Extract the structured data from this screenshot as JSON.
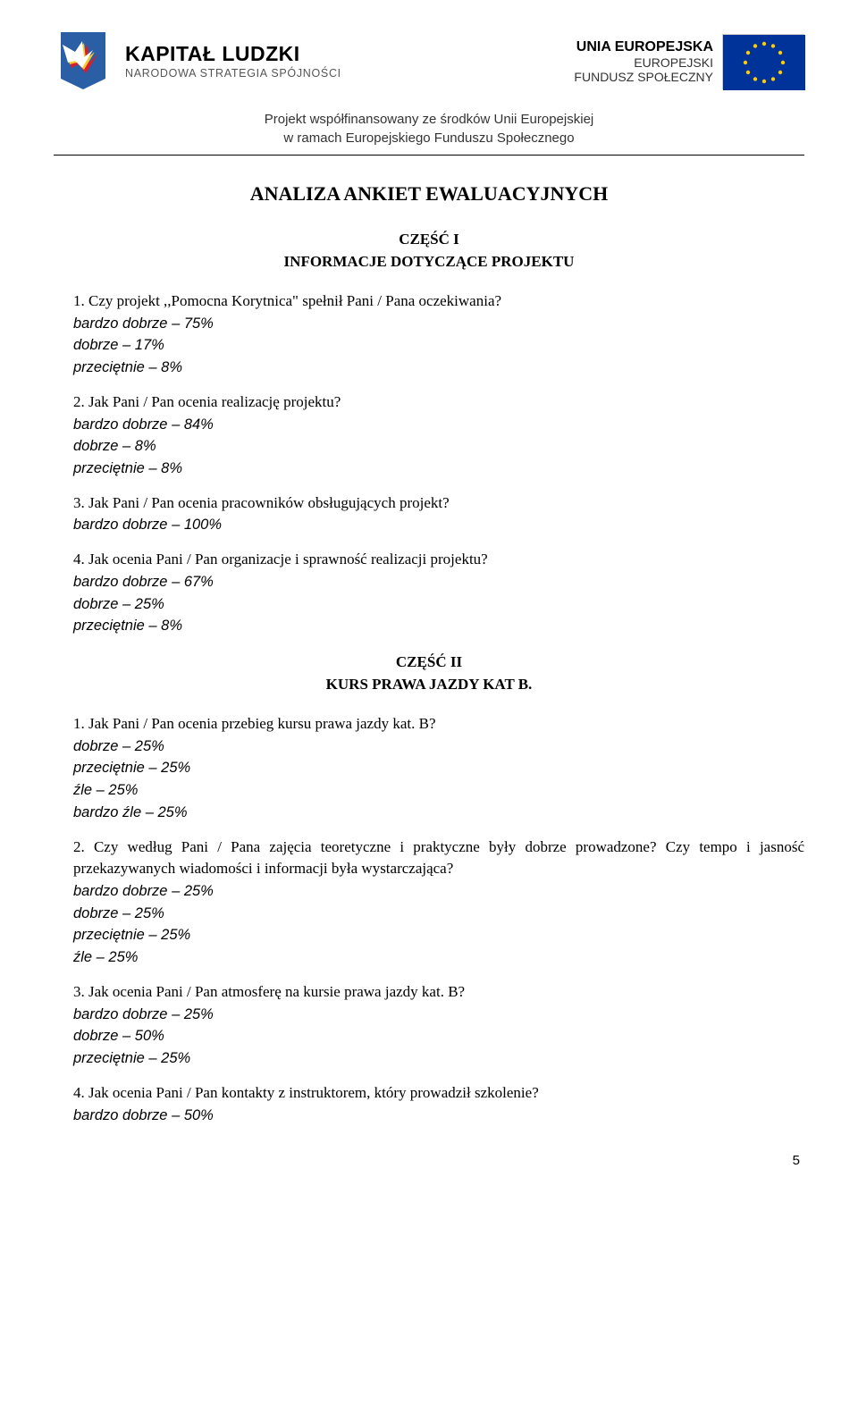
{
  "header": {
    "left_logo": {
      "title": "KAPITAŁ LUDZKI",
      "subtitle": "NARODOWA STRATEGIA SPÓJNOŚCI"
    },
    "right_logo": {
      "line1": "UNIA EUROPEJSKA",
      "line2": "EUROPEJSKI",
      "line3": "FUNDUSZ SPOŁECZNY"
    },
    "subheader_line1": "Projekt współfinansowany ze środków Unii Europejskiej",
    "subheader_line2": "w ramach Europejskiego Funduszu Społecznego"
  },
  "main_title": "ANALIZA ANKIET EWALUACYJNYCH",
  "section1": {
    "title": "CZĘŚĆ I",
    "subtitle": "INFORMACJE DOTYCZĄCE PROJEKTU",
    "questions": [
      {
        "num": "1.",
        "text": "Czy projekt ,,Pomocna Korytnica\" spełnił Pani / Pana oczekiwania?",
        "answers": [
          "bardzo dobrze – 75%",
          "dobrze – 17%",
          "przeciętnie – 8%"
        ]
      },
      {
        "num": "2.",
        "text": "Jak Pani / Pan ocenia realizację projektu?",
        "answers": [
          "bardzo dobrze – 84%",
          "dobrze – 8%",
          "przeciętnie – 8%"
        ]
      },
      {
        "num": "3.",
        "text": "Jak Pani / Pan ocenia pracowników obsługujących projekt?",
        "answers": [
          "bardzo dobrze – 100%"
        ]
      },
      {
        "num": "4.",
        "text": "Jak ocenia Pani / Pan organizacje i sprawność realizacji projektu?",
        "answers": [
          "bardzo dobrze – 67%",
          "dobrze – 25%",
          "przeciętnie – 8%"
        ]
      }
    ]
  },
  "section2": {
    "title": "CZĘŚĆ II",
    "subtitle": "KURS PRAWA JAZDY KAT B.",
    "questions": [
      {
        "num": "1.",
        "text": "Jak Pani / Pan ocenia przebieg kursu prawa jazdy kat. B?",
        "answers": [
          "dobrze – 25%",
          "przeciętnie – 25%",
          "źle – 25%",
          "bardzo źle – 25%"
        ]
      },
      {
        "num": "2.",
        "text": "Czy według Pani / Pana zajęcia teoretyczne i praktyczne były dobrze prowadzone? Czy tempo i jasność przekazywanych wiadomości i informacji była wystarczająca?",
        "answers": [
          "bardzo dobrze – 25%",
          "dobrze – 25%",
          "przeciętnie – 25%",
          "źle – 25%"
        ]
      },
      {
        "num": "3.",
        "text": "Jak ocenia Pani / Pan atmosferę na kursie prawa jazdy kat. B?",
        "answers": [
          "bardzo dobrze – 25%",
          "dobrze – 50%",
          "przeciętnie – 25%"
        ]
      },
      {
        "num": "4.",
        "text": "Jak ocenia Pani / Pan kontakty z instruktorem, który prowadził szkolenie?",
        "answers": [
          "bardzo dobrze – 50%"
        ]
      }
    ]
  },
  "page_number": "5",
  "colors": {
    "text": "#000000",
    "bg": "#ffffff",
    "eu_blue": "#003399",
    "eu_gold": "#ffcc00",
    "kl_blue": "#2b5fa5",
    "kl_red": "#d81e2c",
    "kl_yellow": "#f7c92e"
  }
}
